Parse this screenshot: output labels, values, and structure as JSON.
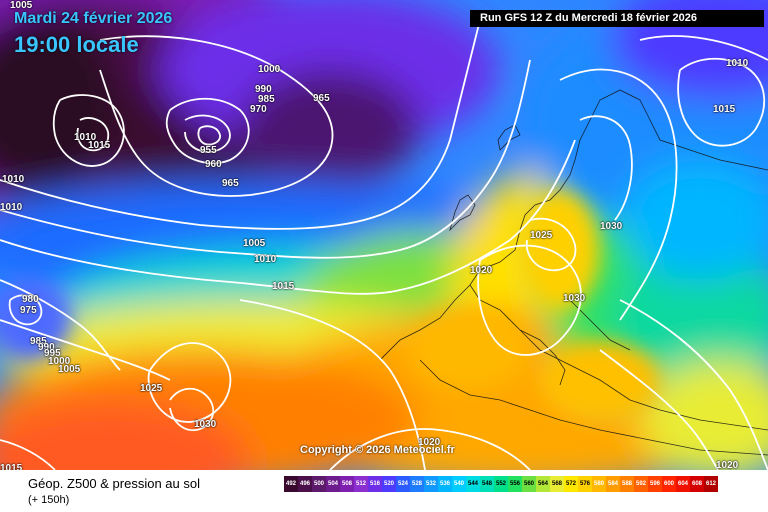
{
  "header": {
    "date": "Mardi 24 février 2026",
    "time": "19:00 locale",
    "run": "Run GFS 12 Z du Mercredi 18 février 2026"
  },
  "footer": {
    "product": "Géop. Z500 & pression au sol",
    "lead": "(+ 150h)",
    "copyright": "Copyright © 2026 Meteociel.fr"
  },
  "colors": {
    "sea_land_base": "#3f7dff",
    "legend": [
      "#3a0a2e",
      "#4b0f4a",
      "#5d1a6a",
      "#6c1c8c",
      "#7f1fb0",
      "#8c2fd0",
      "#6d2ee8",
      "#4d3bff",
      "#2c5cff",
      "#1e7cff",
      "#109aff",
      "#00b6ff",
      "#00ccff",
      "#00dde2",
      "#00e0b8",
      "#00e08a",
      "#22e060",
      "#6be040",
      "#b4e838",
      "#e8ec34",
      "#ffe800",
      "#ffd000",
      "#ffb800",
      "#ff9c00",
      "#ff8000",
      "#ff6000",
      "#ff4000",
      "#ff2400",
      "#f01000",
      "#d40000",
      "#b00000",
      "#880000",
      "#640000"
    ]
  },
  "legend": {
    "values": [
      "492",
      "496",
      "500",
      "504",
      "508",
      "512",
      "516",
      "520",
      "524",
      "528",
      "532",
      "536",
      "540",
      "544",
      "548",
      "552",
      "556",
      "560",
      "564",
      "568",
      "572",
      "576",
      "580",
      "584",
      "588",
      "592",
      "596",
      "600",
      "604",
      "608",
      "612"
    ]
  },
  "isobar_labels": [
    {
      "text": "1000"
    },
    {
      "text": "990"
    },
    {
      "text": "985"
    },
    {
      "text": "970"
    },
    {
      "text": "965"
    },
    {
      "text": "955"
    },
    {
      "text": "960"
    },
    {
      "text": "965"
    },
    {
      "text": "1010"
    },
    {
      "text": "1015"
    },
    {
      "text": "1010"
    },
    {
      "text": "1010"
    },
    {
      "text": "1005"
    },
    {
      "text": "1010"
    },
    {
      "text": "1015"
    },
    {
      "text": "980"
    },
    {
      "text": "975"
    },
    {
      "text": "985"
    },
    {
      "text": "990"
    },
    {
      "text": "995"
    },
    {
      "text": "1000"
    },
    {
      "text": "1005"
    },
    {
      "text": "1025"
    },
    {
      "text": "1030"
    },
    {
      "text": "1020"
    },
    {
      "text": "1025"
    },
    {
      "text": "1030"
    },
    {
      "text": "1030"
    },
    {
      "text": "1020"
    },
    {
      "text": "1020"
    },
    {
      "text": "1010"
    },
    {
      "text": "1015"
    },
    {
      "text": "1015"
    },
    {
      "text": "1005"
    }
  ]
}
